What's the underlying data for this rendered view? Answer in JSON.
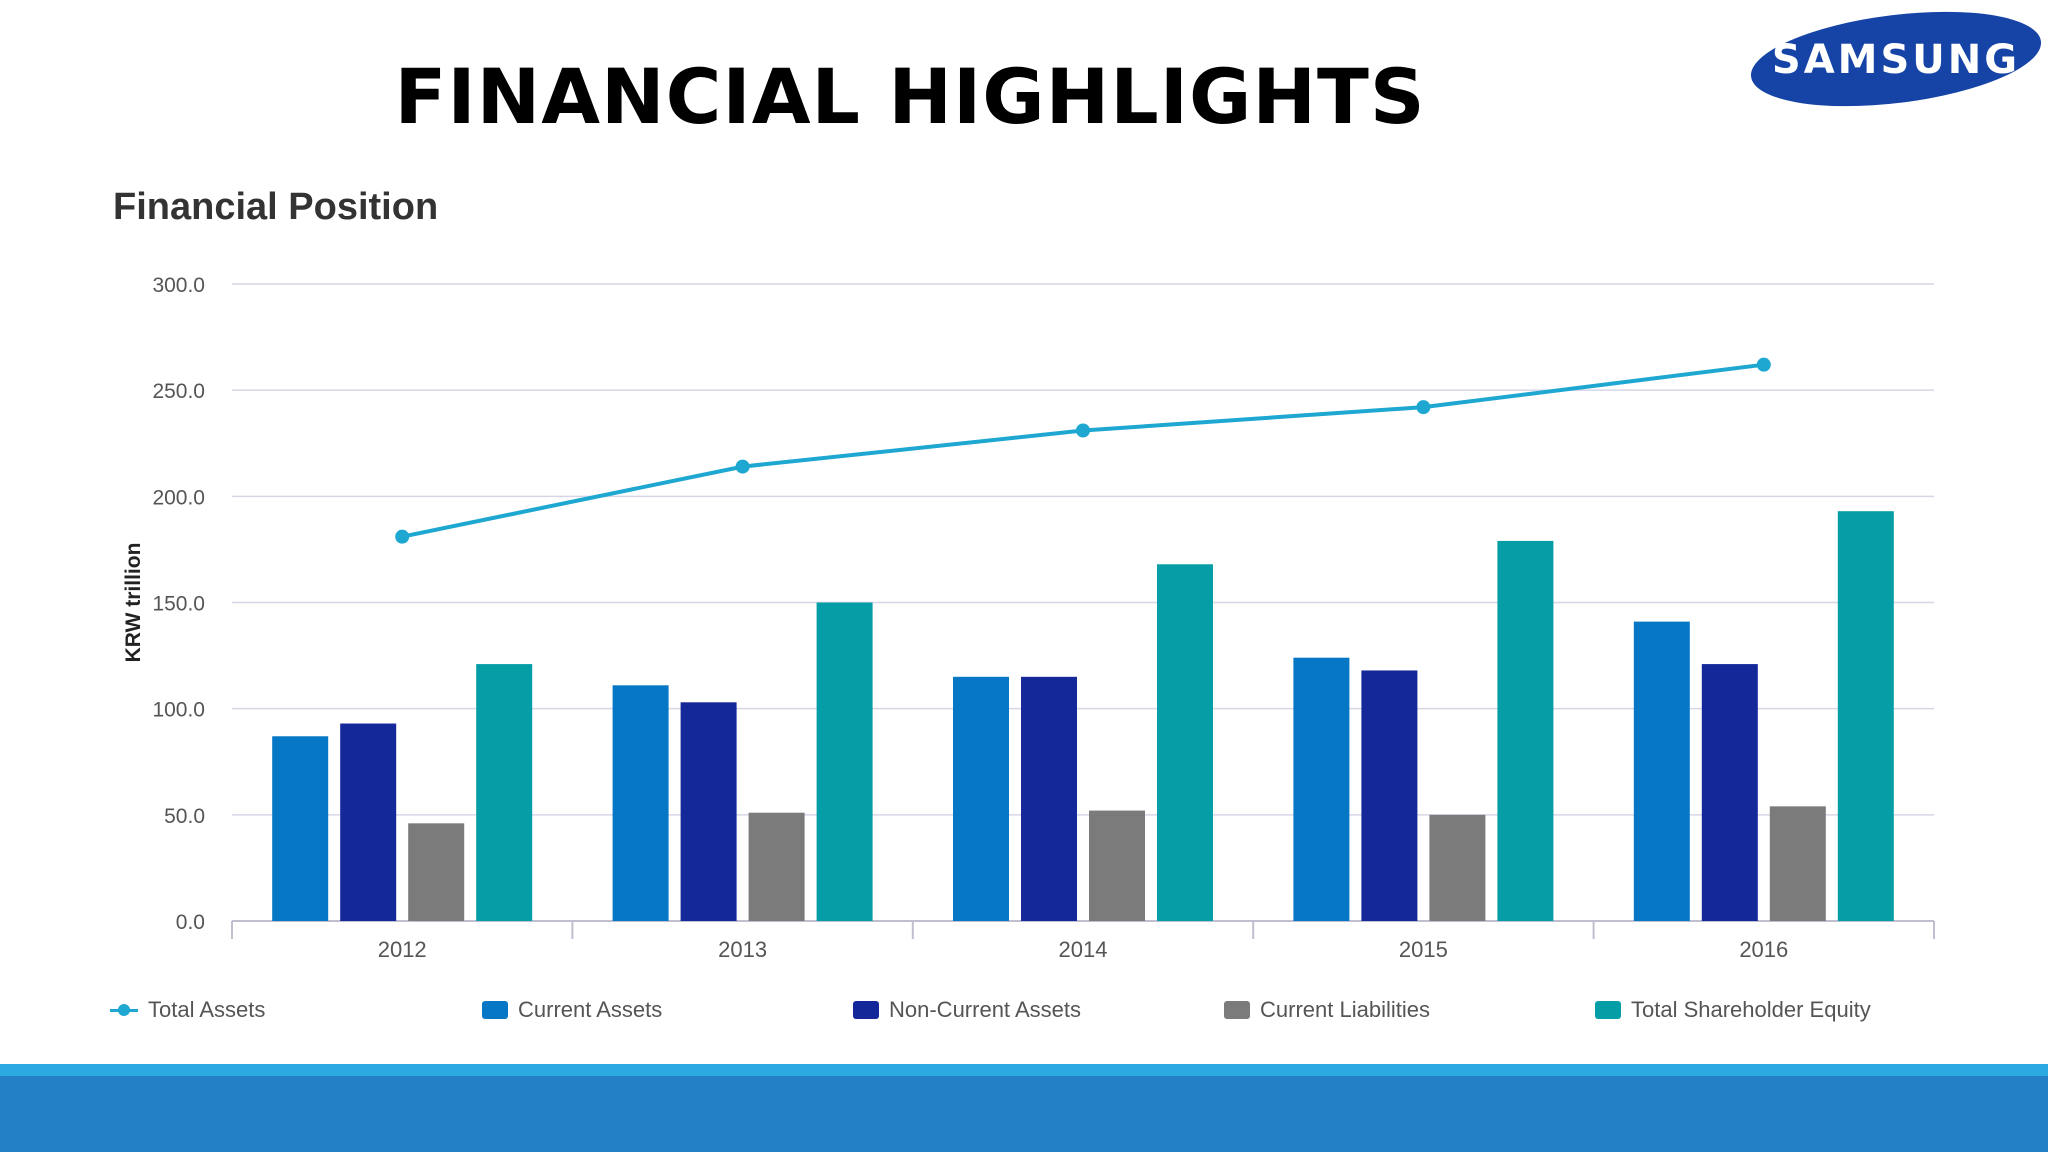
{
  "slide": {
    "title": "FINANCIAL HIGHLIGHTS",
    "logo_text": "SAMSUNG"
  },
  "colors": {
    "total_assets": "#1da7d1",
    "current_assets": "#0577c4",
    "non_current_assets": "#14289a",
    "current_liabilities": "#7b7b7b",
    "total_shareholder_equity": "#069ea6",
    "grid": "#d6d6e6",
    "logo_blue": "#1544a6",
    "footer": "#2480c6",
    "footer_accent": "#2aaae0"
  },
  "chart_data": {
    "type": "bar",
    "title": "Financial Position",
    "ylabel": "KRW trillion",
    "xlabel": "",
    "ylim": [
      0,
      300
    ],
    "yticks": [
      "0.0",
      "50.0",
      "100.0",
      "150.0",
      "200.0",
      "250.0",
      "300.0"
    ],
    "grid": true,
    "legend_position": "bottom",
    "categories": [
      "2012",
      "2013",
      "2014",
      "2015",
      "2016"
    ],
    "series": [
      {
        "name": "Current Assets",
        "type": "bar",
        "color_key": "current_assets",
        "values": [
          87,
          111,
          115,
          124,
          141
        ]
      },
      {
        "name": "Non-Current Assets",
        "type": "bar",
        "color_key": "non_current_assets",
        "values": [
          93,
          103,
          115,
          118,
          121
        ]
      },
      {
        "name": "Current Liabilities",
        "type": "bar",
        "color_key": "current_liabilities",
        "values": [
          46,
          51,
          52,
          50,
          54
        ]
      },
      {
        "name": "Total Shareholder Equity",
        "type": "bar",
        "color_key": "total_shareholder_equity",
        "values": [
          121,
          150,
          168,
          179,
          193
        ]
      },
      {
        "name": "Total Assets",
        "type": "line",
        "color_key": "total_assets",
        "values": [
          181,
          214,
          231,
          242,
          262
        ]
      }
    ],
    "legend": [
      "Total Assets",
      "Current Assets",
      "Non-Current Assets",
      "Current Liabilities",
      "Total Shareholder Equity"
    ]
  }
}
